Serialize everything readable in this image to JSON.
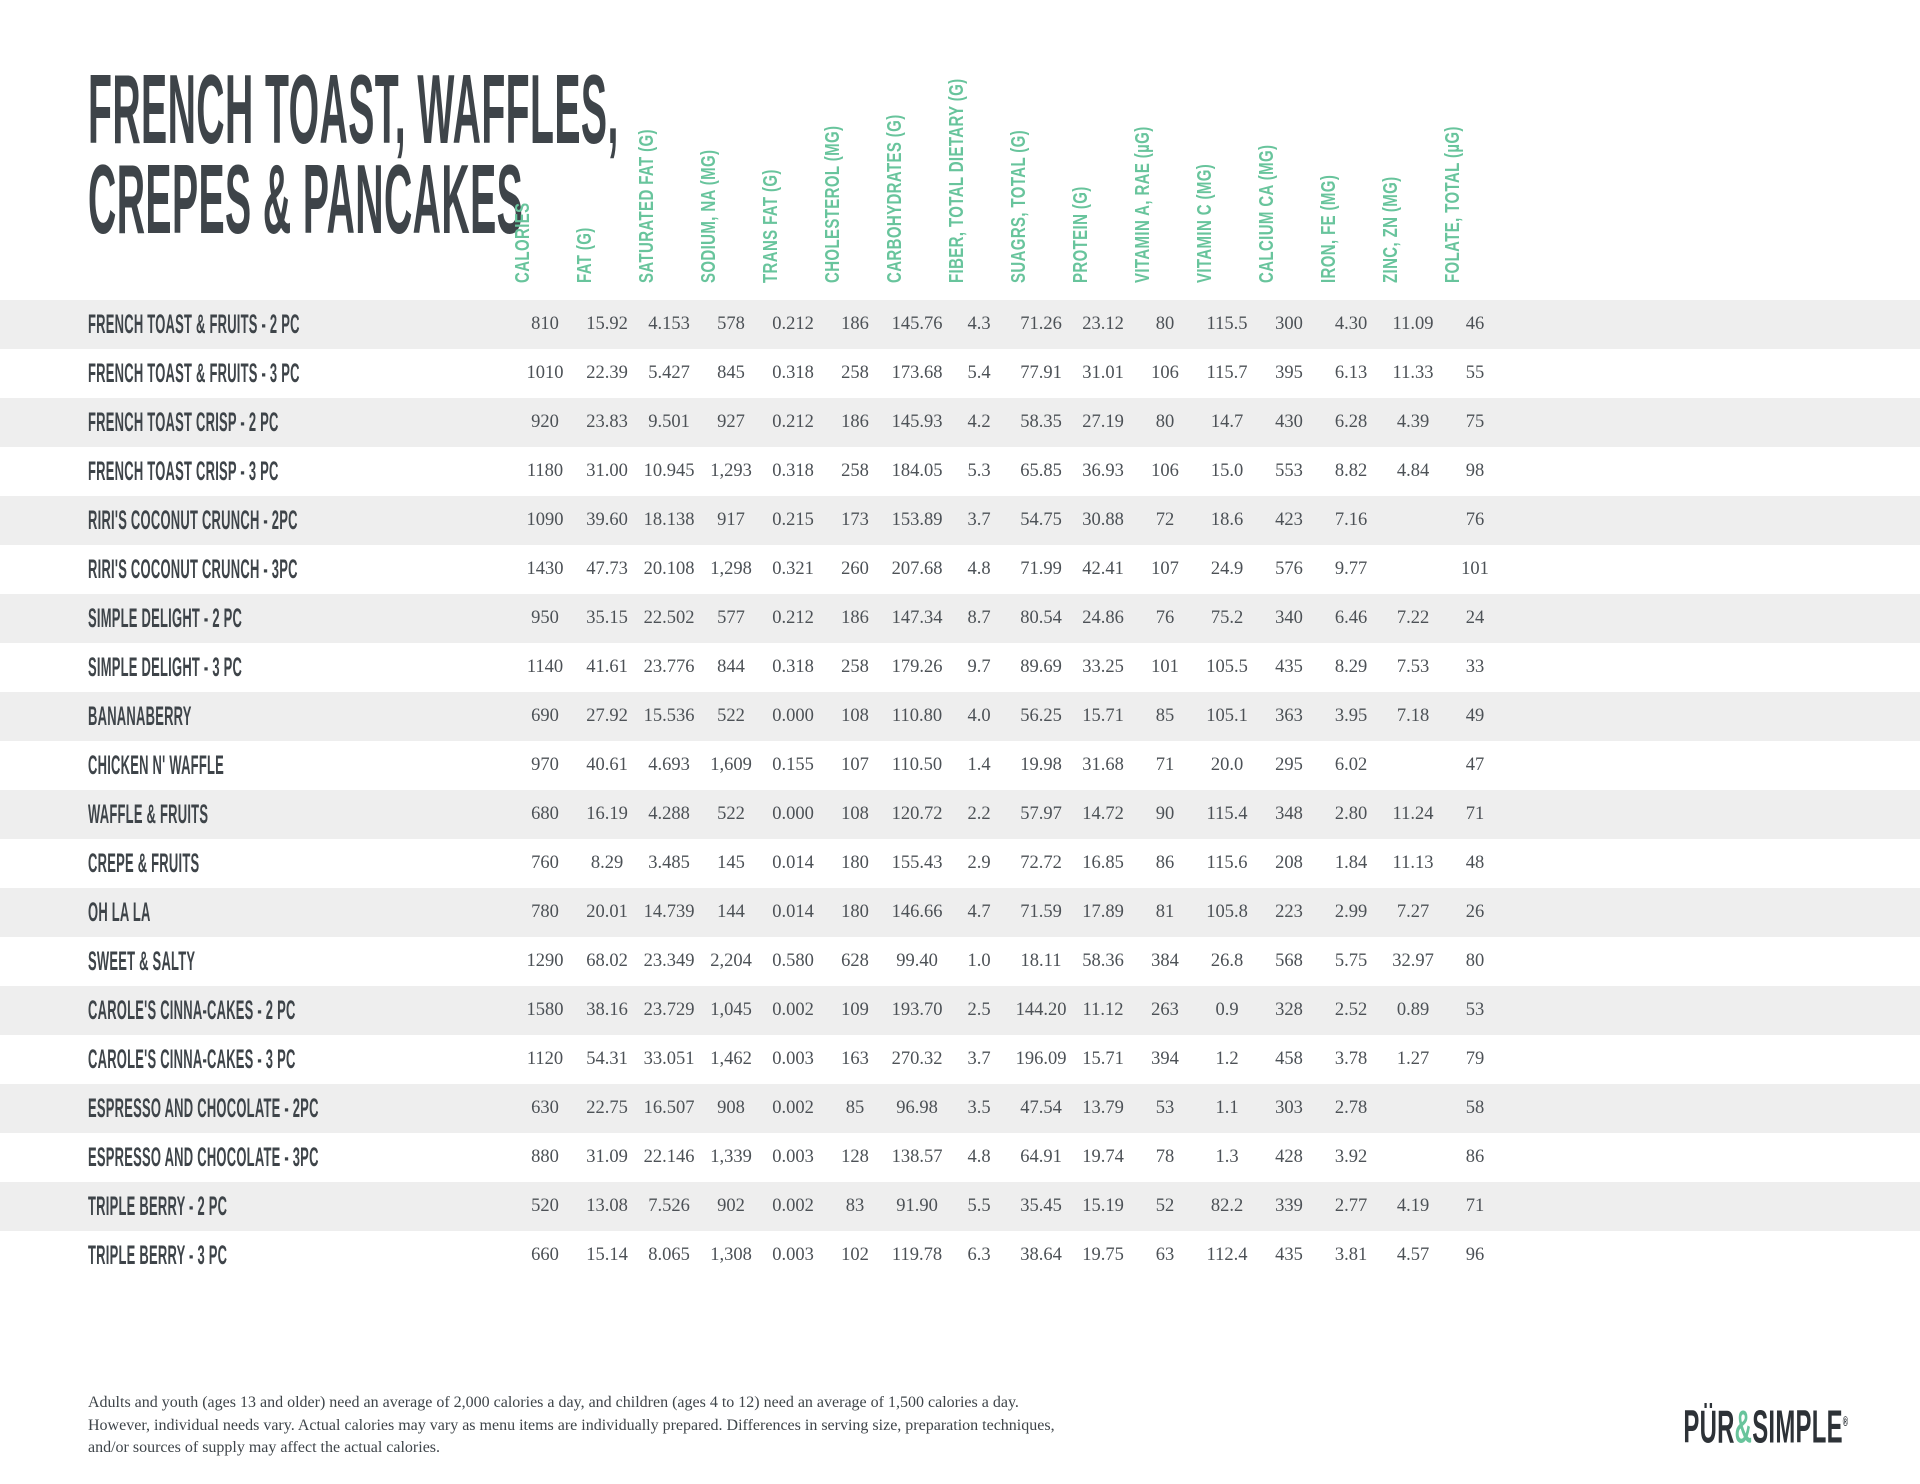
{
  "title": {
    "line1": "FRENCH TOAST, WAFFLES,",
    "line2": "CREPES & PANCAKES"
  },
  "table": {
    "columns": [
      "CALORIES",
      "FAT (G)",
      "SATURATED FAT (G)",
      "SODIUM, NA (MG)",
      "TRANS FAT (G)",
      "CHOLESTEROL (MG)",
      "CARBOHYDRATES (G)",
      "FIBER, TOTAL DIETARY (G)",
      "SUAGRS, TOTAL (G)",
      "PROTEIN (G)",
      "VITAMIN A, RAE (µG)",
      "VITAMIN C (MG)",
      "CALCIUM CA (MG)",
      "IRON, FE (MG)",
      "ZINC, ZN (MG)",
      "FOLATE, TOTAL (µG)"
    ],
    "rows": [
      {
        "label": "FRENCH TOAST & FRUITS - 2 PC",
        "values": [
          "810",
          "15.92",
          "4.153",
          "578",
          "0.212",
          "186",
          "145.76",
          "4.3",
          "71.26",
          "23.12",
          "80",
          "115.5",
          "300",
          "4.30",
          "11.09",
          "46"
        ]
      },
      {
        "label": "FRENCH TOAST & FRUITS - 3 PC",
        "values": [
          "1010",
          "22.39",
          "5.427",
          "845",
          "0.318",
          "258",
          "173.68",
          "5.4",
          "77.91",
          "31.01",
          "106",
          "115.7",
          "395",
          "6.13",
          "11.33",
          "55"
        ]
      },
      {
        "label": "FRENCH TOAST CRISP - 2 PC",
        "values": [
          "920",
          "23.83",
          "9.501",
          "927",
          "0.212",
          "186",
          "145.93",
          "4.2",
          "58.35",
          "27.19",
          "80",
          "14.7",
          "430",
          "6.28",
          "4.39",
          "75"
        ]
      },
      {
        "label": "FRENCH TOAST CRISP - 3 PC",
        "values": [
          "1180",
          "31.00",
          "10.945",
          "1,293",
          "0.318",
          "258",
          "184.05",
          "5.3",
          "65.85",
          "36.93",
          "106",
          "15.0",
          "553",
          "8.82",
          "4.84",
          "98"
        ]
      },
      {
        "label": "RIRI'S COCONUT CRUNCH - 2PC",
        "values": [
          "1090",
          "39.60",
          "18.138",
          "917",
          "0.215",
          "173",
          "153.89",
          "3.7",
          "54.75",
          "30.88",
          "72",
          "18.6",
          "423",
          "7.16",
          "",
          "76"
        ]
      },
      {
        "label": "RIRI'S COCONUT CRUNCH - 3PC",
        "values": [
          "1430",
          "47.73",
          "20.108",
          "1,298",
          "0.321",
          "260",
          "207.68",
          "4.8",
          "71.99",
          "42.41",
          "107",
          "24.9",
          "576",
          "9.77",
          "",
          "101"
        ]
      },
      {
        "label": "SIMPLE DELIGHT - 2 PC",
        "values": [
          "950",
          "35.15",
          "22.502",
          "577",
          "0.212",
          "186",
          "147.34",
          "8.7",
          "80.54",
          "24.86",
          "76",
          "75.2",
          "340",
          "6.46",
          "7.22",
          "24"
        ]
      },
      {
        "label": "SIMPLE DELIGHT - 3 PC",
        "values": [
          "1140",
          "41.61",
          "23.776",
          "844",
          "0.318",
          "258",
          "179.26",
          "9.7",
          "89.69",
          "33.25",
          "101",
          "105.5",
          "435",
          "8.29",
          "7.53",
          "33"
        ]
      },
      {
        "label": "BANANABERRY",
        "values": [
          "690",
          "27.92",
          "15.536",
          "522",
          "0.000",
          "108",
          "110.80",
          "4.0",
          "56.25",
          "15.71",
          "85",
          "105.1",
          "363",
          "3.95",
          "7.18",
          "49"
        ]
      },
      {
        "label": "CHICKEN N' WAFFLE",
        "values": [
          "970",
          "40.61",
          "4.693",
          "1,609",
          "0.155",
          "107",
          "110.50",
          "1.4",
          "19.98",
          "31.68",
          "71",
          "20.0",
          "295",
          "6.02",
          "",
          "47"
        ]
      },
      {
        "label": "WAFFLE & FRUITS",
        "values": [
          "680",
          "16.19",
          "4.288",
          "522",
          "0.000",
          "108",
          "120.72",
          "2.2",
          "57.97",
          "14.72",
          "90",
          "115.4",
          "348",
          "2.80",
          "11.24",
          "71"
        ]
      },
      {
        "label": "CREPE & FRUITS",
        "values": [
          "760",
          "8.29",
          "3.485",
          "145",
          "0.014",
          "180",
          "155.43",
          "2.9",
          "72.72",
          "16.85",
          "86",
          "115.6",
          "208",
          "1.84",
          "11.13",
          "48"
        ]
      },
      {
        "label": "OH LA LA",
        "values": [
          "780",
          "20.01",
          "14.739",
          "144",
          "0.014",
          "180",
          "146.66",
          "4.7",
          "71.59",
          "17.89",
          "81",
          "105.8",
          "223",
          "2.99",
          "7.27",
          "26"
        ]
      },
      {
        "label": "SWEET & SALTY",
        "values": [
          "1290",
          "68.02",
          "23.349",
          "2,204",
          "0.580",
          "628",
          "99.40",
          "1.0",
          "18.11",
          "58.36",
          "384",
          "26.8",
          "568",
          "5.75",
          "32.97",
          "80"
        ]
      },
      {
        "label": "CAROLE'S CINNA-CAKES - 2 PC",
        "values": [
          "1580",
          "38.16",
          "23.729",
          "1,045",
          "0.002",
          "109",
          "193.70",
          "2.5",
          "144.20",
          "11.12",
          "263",
          "0.9",
          "328",
          "2.52",
          "0.89",
          "53"
        ]
      },
      {
        "label": "CAROLE'S CINNA-CAKES - 3 PC",
        "values": [
          "1120",
          "54.31",
          "33.051",
          "1,462",
          "0.003",
          "163",
          "270.32",
          "3.7",
          "196.09",
          "15.71",
          "394",
          "1.2",
          "458",
          "3.78",
          "1.27",
          "79"
        ]
      },
      {
        "label": "ESPRESSO AND CHOCOLATE - 2PC",
        "values": [
          "630",
          "22.75",
          "16.507",
          "908",
          "0.002",
          "85",
          "96.98",
          "3.5",
          "47.54",
          "13.79",
          "53",
          "1.1",
          "303",
          "2.78",
          "",
          "58"
        ]
      },
      {
        "label": "ESPRESSO AND CHOCOLATE - 3PC",
        "values": [
          "880",
          "31.09",
          "22.146",
          "1,339",
          "0.003",
          "128",
          "138.57",
          "4.8",
          "64.91",
          "19.74",
          "78",
          "1.3",
          "428",
          "3.92",
          "",
          "86"
        ]
      },
      {
        "label": "TRIPLE BERRY - 2 PC",
        "values": [
          "520",
          "13.08",
          "7.526",
          "902",
          "0.002",
          "83",
          "91.90",
          "5.5",
          "35.45",
          "15.19",
          "52",
          "82.2",
          "339",
          "2.77",
          "4.19",
          "71"
        ]
      },
      {
        "label": "TRIPLE BERRY - 3 PC",
        "values": [
          "660",
          "15.14",
          "8.065",
          "1,308",
          "0.003",
          "102",
          "119.78",
          "6.3",
          "38.64",
          "19.75",
          "63",
          "112.4",
          "435",
          "3.81",
          "4.57",
          "96"
        ]
      }
    ]
  },
  "footer": {
    "disclaimer": "Adults and youth (ages 13 and older) need an average of 2,000 calories a day, and children (ages 4 to 12) need an average of 1,500 calories a day. However, individual needs vary. Actual calories may vary as menu items are individually prepared. Differences in serving size, preparation techniques, and/or sources of supply may affect the actual calories.",
    "logo": {
      "pur": "PÜR",
      "amp": "&",
      "simple": "SIMPLE",
      "reg": "®"
    }
  },
  "colors": {
    "accent": "#68C49C",
    "heading": "#3E4449",
    "number": "#4C5156",
    "stripe": "#EEEEEE",
    "logo": "#2D3237"
  }
}
